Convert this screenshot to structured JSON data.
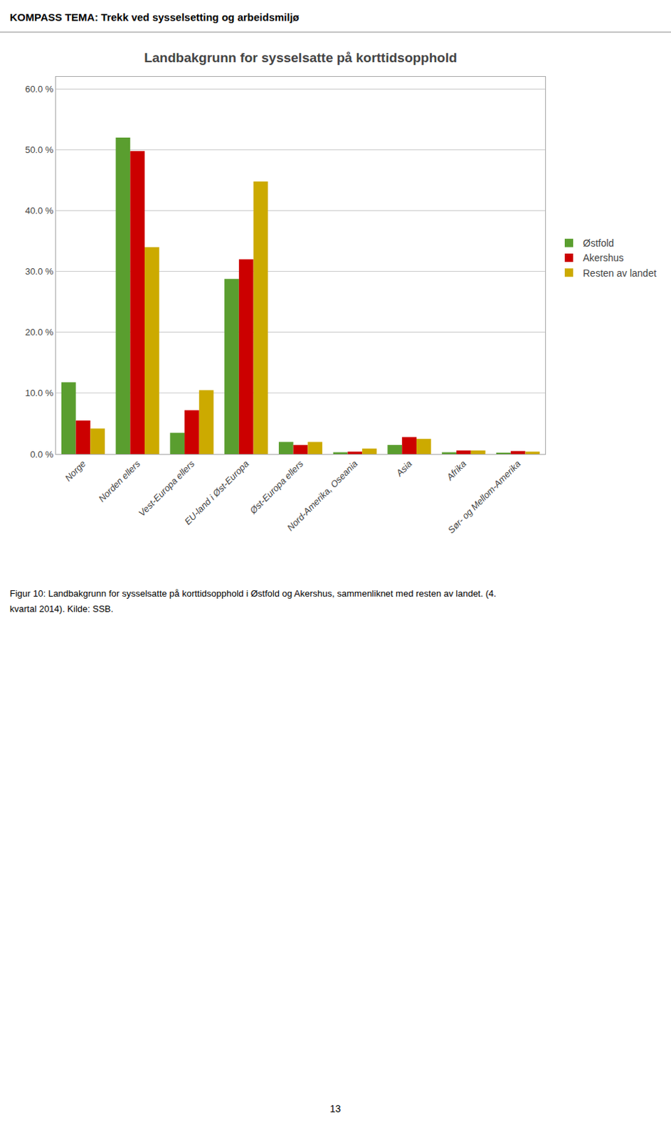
{
  "chart_data": {
    "type": "bar",
    "title": "Landbakgrunn for sysselsatte på korttidsopphold",
    "categories": [
      "Norge",
      "Norden ellers",
      "Vest-Europa ellers",
      "EU-land i Øst-Europa",
      "Øst-Europa ellers",
      "Nord-Amerika, Oseania",
      "Asia",
      "Afrika",
      "Sør- og Mellom-Amerika"
    ],
    "series": [
      {
        "name": "Østfold",
        "color": "#5a9e2f",
        "values": [
          11.8,
          52.0,
          3.5,
          28.8,
          2.0,
          0.3,
          1.5,
          0.3,
          0.2
        ]
      },
      {
        "name": "Akershus",
        "color": "#cc0000",
        "values": [
          5.5,
          49.8,
          7.2,
          32.0,
          1.5,
          0.4,
          2.8,
          0.6,
          0.5
        ]
      },
      {
        "name": "Resten av landet",
        "color": "#ccaa00",
        "values": [
          4.2,
          34.0,
          10.5,
          44.8,
          2.0,
          0.9,
          2.5,
          0.6,
          0.4
        ]
      }
    ],
    "ylim": [
      0,
      62
    ],
    "yticks": [
      {
        "value": 0,
        "label": "0.0 %"
      },
      {
        "value": 10,
        "label": "10.0 %"
      },
      {
        "value": 20,
        "label": "20.0 %"
      },
      {
        "value": 30,
        "label": "30.0 %"
      },
      {
        "value": 40,
        "label": "40.0 %"
      },
      {
        "value": 50,
        "label": "50.0 %"
      },
      {
        "value": 60,
        "label": "60.0 %"
      }
    ],
    "grid": true,
    "legend": "right",
    "annotations": [
      "KOMPASS TEMA: Trekk ved sysselsetting og arbeidsmiljø",
      "Figur 10: Landbakgrunn for sysselsatte på korttidsopphold i Østfold og Akershus, sammenliknet med resten av landet. (4.",
      "kvartal 2014). Kilde: SSB.",
      "13"
    ]
  }
}
